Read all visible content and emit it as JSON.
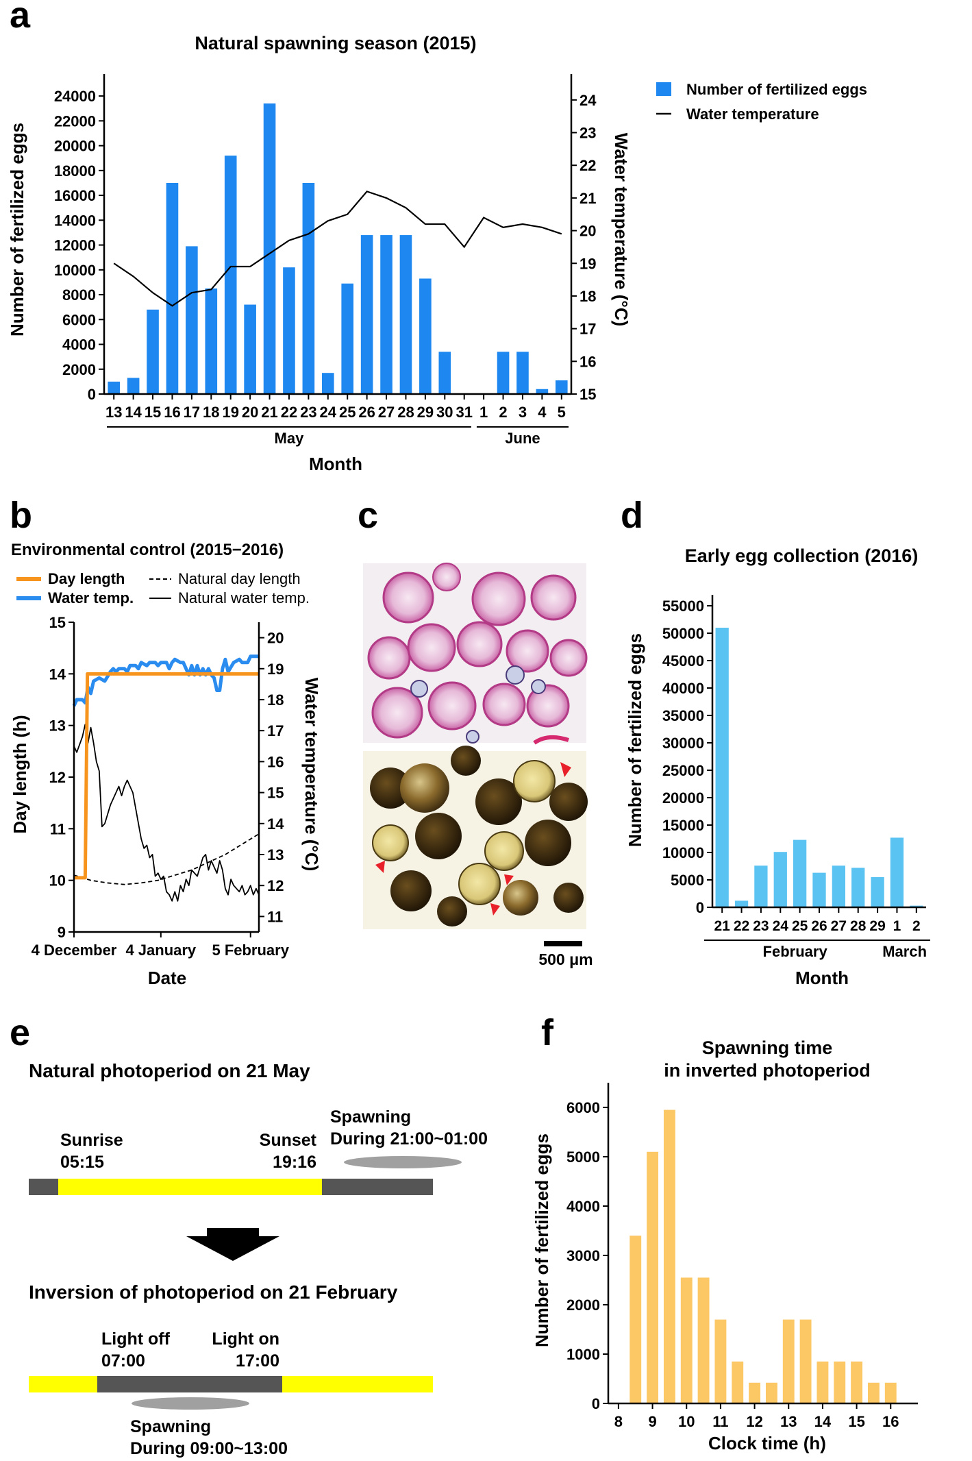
{
  "panels": {
    "a": "a",
    "b": "b",
    "c": "c",
    "d": "d",
    "e": "e",
    "f": "f"
  },
  "colors": {
    "a_bar": "#1e88f0",
    "b_day": "#f7941d",
    "b_water": "#2b8cf0",
    "d_bar": "#5bc3f2",
    "f_bar": "#fcc865",
    "e_light": "#ffff00",
    "e_dark": "#555555",
    "arrow_red": "#e8202a"
  },
  "chart_data": [
    {
      "id": "a",
      "type": "bar",
      "title": "Natural spawning season (2015)",
      "ylabel": "Number of fertilized eggs",
      "y2label": "Water temperature (°C)",
      "xlabel": "Month",
      "ylim": [
        0,
        25000
      ],
      "yticks": [
        0,
        2000,
        4000,
        6000,
        8000,
        10000,
        12000,
        14000,
        16000,
        18000,
        20000,
        22000,
        24000
      ],
      "y2lim": [
        15,
        24.5
      ],
      "y2ticks": [
        15,
        16,
        17,
        18,
        19,
        20,
        21,
        22,
        23,
        24
      ],
      "categories": [
        "13",
        "14",
        "15",
        "16",
        "17",
        "18",
        "19",
        "20",
        "21",
        "22",
        "23",
        "24",
        "25",
        "26",
        "27",
        "28",
        "29",
        "30",
        "31",
        "1",
        "2",
        "3",
        "4",
        "5"
      ],
      "values": [
        1000,
        1300,
        6800,
        17000,
        11900,
        8500,
        19200,
        7200,
        23400,
        10200,
        17000,
        1700,
        8900,
        12800,
        12800,
        12800,
        9300,
        3400,
        0,
        0,
        3400,
        3400,
        400,
        1100
      ],
      "temperature": [
        19.0,
        18.6,
        18.1,
        17.7,
        18.1,
        18.2,
        18.9,
        18.9,
        19.3,
        19.7,
        19.9,
        20.3,
        20.5,
        21.2,
        21.0,
        20.7,
        20.2,
        20.2,
        19.5,
        20.4,
        20.1,
        20.2,
        20.1,
        19.9
      ],
      "month_groups": [
        {
          "label": "May",
          "from": 0,
          "to": 18
        },
        {
          "label": "June",
          "from": 19,
          "to": 23
        }
      ],
      "legend": [
        {
          "label": "Number of fertilized eggs",
          "kind": "bar"
        },
        {
          "label": "Water temperature",
          "kind": "line"
        }
      ]
    },
    {
      "id": "b",
      "type": "line",
      "title": "Environmental control (2015−2016)",
      "ylabel": "Day length (h)",
      "y2label": "Water temperature (°C)",
      "xlabel": "Date",
      "ylim": [
        9,
        15
      ],
      "yticks": [
        9,
        10,
        11,
        12,
        13,
        14,
        15
      ],
      "y2lim": [
        10.5,
        20.5
      ],
      "y2ticks": [
        11,
        12,
        13,
        14,
        15,
        16,
        17,
        18,
        19,
        20
      ],
      "xlim": [
        0,
        66
      ],
      "xticks": [
        {
          "value": 0,
          "label": "4 December"
        },
        {
          "value": 31,
          "label": "4 January"
        },
        {
          "value": 63,
          "label": "5 February"
        }
      ],
      "legend": [
        {
          "label": "Day length",
          "kind": "orange"
        },
        {
          "label": "Water temp.",
          "kind": "blue"
        },
        {
          "label": "Natural day length",
          "kind": "dashed"
        },
        {
          "label": "Natural water temp.",
          "kind": "solid"
        }
      ],
      "series": [
        {
          "name": "Day length",
          "axis": "left",
          "points": [
            [
              0,
              10.05
            ],
            [
              4,
              10.05
            ],
            [
              4.8,
              14.0
            ],
            [
              66,
              14.0
            ]
          ]
        },
        {
          "name": "Water temp.",
          "axis": "right",
          "points": [
            [
              0,
              17.8
            ],
            [
              1,
              18.0
            ],
            [
              3,
              18.0
            ],
            [
              4,
              17.9
            ],
            [
              5,
              18.4
            ],
            [
              6,
              18.2
            ],
            [
              7,
              18.6
            ],
            [
              9,
              18.7
            ],
            [
              11,
              18.6
            ],
            [
              13,
              18.9
            ],
            [
              14,
              19.0
            ],
            [
              15,
              18.9
            ],
            [
              16,
              19.0
            ],
            [
              18,
              19.0
            ],
            [
              19,
              18.9
            ],
            [
              20,
              19.1
            ],
            [
              22,
              19.1
            ],
            [
              23,
              19.0
            ],
            [
              24,
              19.2
            ],
            [
              26,
              19.1
            ],
            [
              27,
              19.2
            ],
            [
              29,
              19.2
            ],
            [
              30,
              19.1
            ],
            [
              31,
              19.2
            ],
            [
              33,
              19.2
            ],
            [
              34,
              19.0
            ],
            [
              35,
              19.2
            ],
            [
              36,
              19.3
            ],
            [
              38,
              19.2
            ],
            [
              39,
              19.2
            ],
            [
              40,
              19.0
            ],
            [
              41,
              18.8
            ],
            [
              42,
              19.1
            ],
            [
              43,
              18.8
            ],
            [
              44,
              19.1
            ],
            [
              45,
              18.8
            ],
            [
              46,
              19.0
            ],
            [
              47,
              18.8
            ],
            [
              48,
              19.0
            ],
            [
              49,
              18.8
            ],
            [
              50,
              18.7
            ],
            [
              51,
              18.3
            ],
            [
              52,
              18.3
            ],
            [
              53,
              19.0
            ],
            [
              54,
              19.3
            ],
            [
              55,
              18.9
            ],
            [
              57,
              19.2
            ],
            [
              59,
              19.3
            ],
            [
              60,
              19.2
            ],
            [
              62,
              19.2
            ],
            [
              63,
              19.4
            ],
            [
              66,
              19.4
            ]
          ]
        },
        {
          "name": "Natural day length",
          "axis": "left",
          "points": [
            [
              0,
              10.1
            ],
            [
              6,
              10.0
            ],
            [
              12,
              9.95
            ],
            [
              18,
              9.92
            ],
            [
              24,
              9.95
            ],
            [
              30,
              10.0
            ],
            [
              36,
              10.1
            ],
            [
              42,
              10.2
            ],
            [
              48,
              10.35
            ],
            [
              54,
              10.5
            ],
            [
              60,
              10.7
            ],
            [
              66,
              10.9
            ]
          ]
        },
        {
          "name": "Natural water temp.",
          "axis": "right",
          "points": [
            [
              0,
              16.5
            ],
            [
              1,
              16.3
            ],
            [
              3,
              16.8
            ],
            [
              4,
              17.2
            ],
            [
              5,
              16.6
            ],
            [
              6,
              17.1
            ],
            [
              7,
              16.6
            ],
            [
              8,
              16.0
            ],
            [
              9,
              15.7
            ],
            [
              10,
              13.9
            ],
            [
              11,
              14.0
            ],
            [
              12,
              14.3
            ],
            [
              13,
              14.6
            ],
            [
              14,
              14.8
            ],
            [
              15,
              15.0
            ],
            [
              16,
              15.2
            ],
            [
              17,
              14.9
            ],
            [
              18,
              15.2
            ],
            [
              19,
              15.4
            ],
            [
              20,
              15.2
            ],
            [
              21,
              15.0
            ],
            [
              22,
              14.5
            ],
            [
              23,
              14.0
            ],
            [
              24,
              13.5
            ],
            [
              25,
              13.2
            ],
            [
              26,
              13.3
            ],
            [
              27,
              12.9
            ],
            [
              28,
              13.0
            ],
            [
              29,
              12.3
            ],
            [
              30,
              12.4
            ],
            [
              31,
              12.2
            ],
            [
              32,
              12.3
            ],
            [
              33,
              11.8
            ],
            [
              34,
              11.7
            ],
            [
              35,
              11.5
            ],
            [
              36,
              11.8
            ],
            [
              37,
              11.5
            ],
            [
              38,
              12.0
            ],
            [
              39,
              11.8
            ],
            [
              40,
              12.2
            ],
            [
              41,
              12.0
            ],
            [
              42,
              12.5
            ],
            [
              43,
              12.4
            ],
            [
              44,
              12.3
            ],
            [
              45,
              12.6
            ],
            [
              46,
              12.9
            ],
            [
              47,
              13.0
            ],
            [
              48,
              12.5
            ],
            [
              49,
              12.8
            ],
            [
              50,
              12.6
            ],
            [
              51,
              12.4
            ],
            [
              52,
              12.8
            ],
            [
              53,
              12.5
            ],
            [
              54,
              11.9
            ],
            [
              55,
              11.7
            ],
            [
              56,
              12.2
            ],
            [
              57,
              12.0
            ],
            [
              58,
              11.9
            ],
            [
              59,
              11.8
            ],
            [
              60,
              12.0
            ],
            [
              61,
              11.7
            ],
            [
              62,
              11.8
            ],
            [
              63,
              12.0
            ],
            [
              64,
              11.7
            ],
            [
              65,
              11.9
            ],
            [
              66,
              11.7
            ]
          ]
        }
      ]
    },
    {
      "id": "d",
      "type": "bar",
      "title": "Early egg collection (2016)",
      "ylabel": "Number of fertilized eggs",
      "xlabel": "Month",
      "ylim": [
        0,
        57000
      ],
      "yticks": [
        0,
        5000,
        10000,
        15000,
        20000,
        25000,
        30000,
        35000,
        40000,
        45000,
        50000,
        55000
      ],
      "categories": [
        "21",
        "22",
        "23",
        "24",
        "25",
        "26",
        "27",
        "28",
        "29",
        "1",
        "2"
      ],
      "values": [
        51000,
        1200,
        7600,
        10100,
        12300,
        6300,
        7600,
        7200,
        5500,
        12700,
        300
      ],
      "month_groups": [
        {
          "label": "February",
          "from": 0,
          "to": 8
        },
        {
          "label": "March",
          "from": 9,
          "to": 10
        }
      ]
    },
    {
      "id": "f",
      "type": "bar",
      "title": "Spawning time",
      "title_line2": "in inverted photoperiod",
      "ylabel": "Number of fertilized eggs",
      "xlabel": "Clock time (h)",
      "xlim": [
        7.7,
        16.8
      ],
      "xticks": [
        8,
        9,
        10,
        11,
        12,
        13,
        14,
        15,
        16
      ],
      "ylim": [
        0,
        6500
      ],
      "yticks": [
        0,
        1000,
        2000,
        3000,
        4000,
        5000,
        6000
      ],
      "x": [
        8.5,
        9.0,
        9.5,
        10.0,
        10.5,
        11.0,
        11.5,
        12.0,
        12.5,
        13.0,
        13.5,
        14.0,
        14.5,
        15.0,
        15.5,
        16.0
      ],
      "values": [
        3400,
        5100,
        5950,
        2550,
        2550,
        1700,
        850,
        420,
        420,
        1700,
        1700,
        850,
        850,
        850,
        420,
        420
      ]
    }
  ],
  "panel_c": {
    "scale_bar": "500 μm"
  },
  "panel_e": {
    "natural_title": "Natural photoperiod on 21 May",
    "sunrise": "Sunrise",
    "sunrise_time": "05:15",
    "sunset": "Sunset",
    "sunset_time": "19:16",
    "spawning_nat": "Spawning",
    "spawning_nat_time": "During 21:00~01:00",
    "inverted_title": "Inversion of photoperiod on 21 February",
    "light_off": "Light off",
    "light_off_time": "07:00",
    "light_on": "Light on",
    "light_on_time": "17:00",
    "spawning_inv": "Spawning",
    "spawning_inv_time": "During 09:00~13:00"
  }
}
